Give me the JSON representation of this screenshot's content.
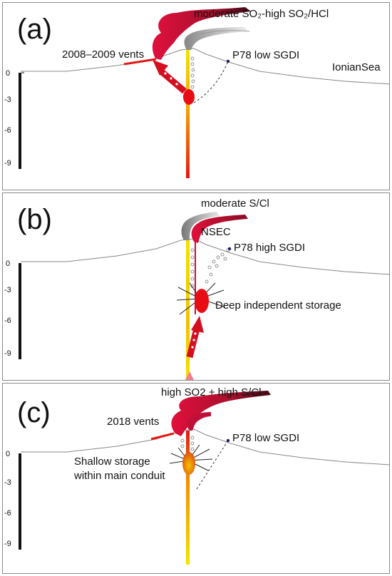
{
  "panels": [
    {
      "label": "(a)",
      "plume": "moderate SO₂-high SO₂/HCl",
      "vents": "2008–2009 vents",
      "station": "P78 low SGDI",
      "sea": "IonianSea",
      "depth_ticks": [
        "0",
        "-3",
        "-6",
        "-9"
      ]
    },
    {
      "label": "(b)",
      "plume": "moderate S/Cl",
      "crater": "NSEC",
      "station": "P78 high SGDI",
      "storage": "Deep independent storage",
      "depth_ticks": [
        "0",
        "-3",
        "-6",
        "-9"
      ]
    },
    {
      "label": "(c)",
      "plume": "high SO2 + high S/Cl",
      "vents": "2018 vents",
      "station": "P78 low SGDI",
      "storage_line1": "Shallow storage",
      "storage_line2": "within main conduit",
      "depth_ticks": [
        "0",
        "-3",
        "-6",
        "-9"
      ]
    }
  ],
  "colors": {
    "plume_red": "#d0103a",
    "plume_grey": "#9a9a9a",
    "conduit_top": "#f3e300",
    "conduit_bottom": "#e01818",
    "magma": "#e80c14"
  }
}
